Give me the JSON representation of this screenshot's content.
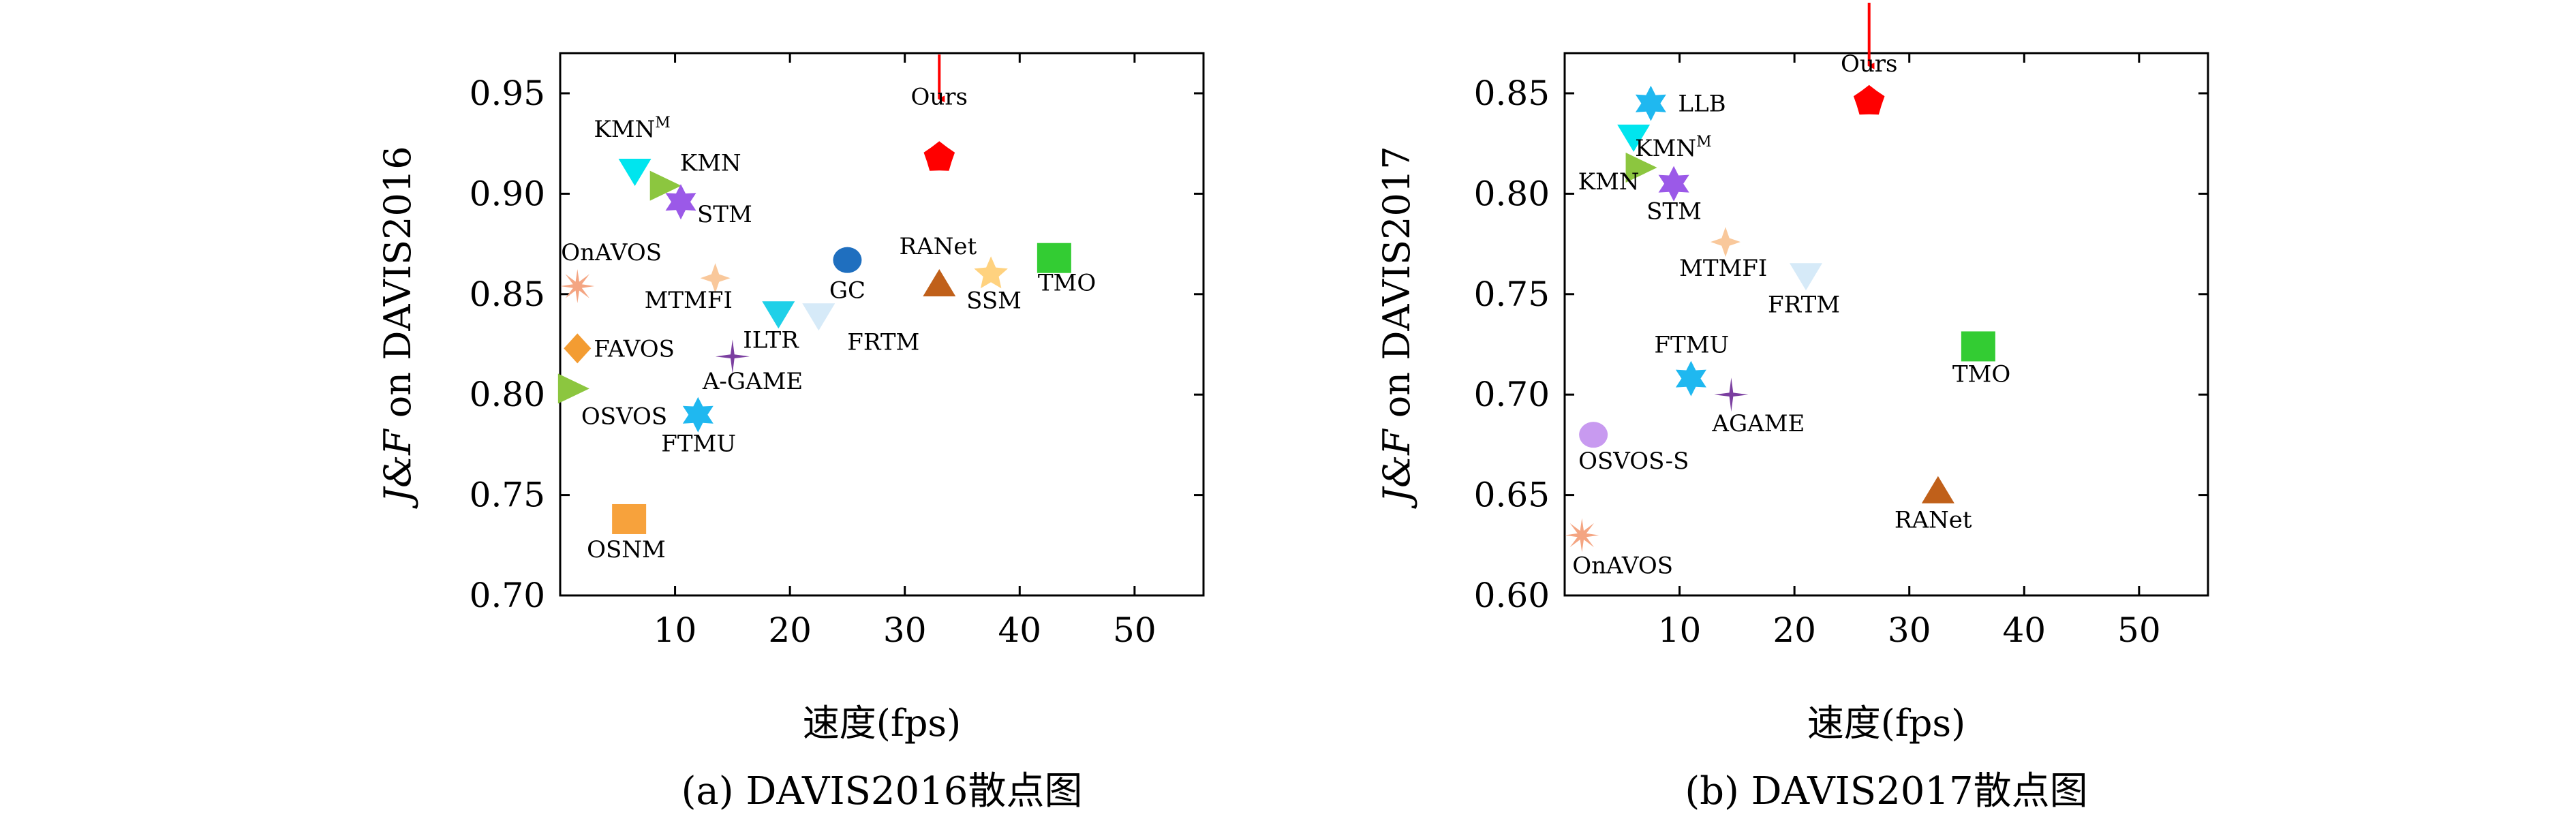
{
  "chart_data": [
    {
      "type": "scatter",
      "caption": "(a) DAVIS2016散点图",
      "xlabel": "速度(fps)",
      "ylabel_prefix": "J&F",
      "ylabel_suffix": " on DAVIS2016",
      "xlim": [
        0,
        56
      ],
      "ylim": [
        0.7,
        0.97
      ],
      "xticks": [
        "10",
        "20",
        "30",
        "40",
        "50"
      ],
      "xtick_values": [
        10,
        20,
        30,
        40,
        50
      ],
      "yticks": [
        "0.70",
        "0.75",
        "0.80",
        "0.85",
        "0.90",
        "0.95"
      ],
      "ytick_values": [
        0.7,
        0.75,
        0.8,
        0.85,
        0.9,
        0.95
      ],
      "arrow_target": "Ours",
      "points": [
        {
          "label": "KMN",
          "sup": "M",
          "x": 6.5,
          "y": 0.912,
          "shape": "tri-down",
          "color": "#00E5EE"
        },
        {
          "label": "KMN",
          "x": 9.0,
          "y": 0.904,
          "shape": "tri-right",
          "color": "#8CC63F"
        },
        {
          "label": "STM",
          "x": 10.5,
          "y": 0.896,
          "shape": "star6",
          "color": "#9B59E8"
        },
        {
          "label": "OnAVOS",
          "x": 1.5,
          "y": 0.854,
          "shape": "asterisk",
          "color": "#F4A582"
        },
        {
          "label": "MTMFI",
          "x": 13.5,
          "y": 0.858,
          "shape": "cross4",
          "color": "#F9C89B"
        },
        {
          "label": "GC",
          "x": 25.0,
          "y": 0.867,
          "shape": "circle",
          "color": "#1F6FBF"
        },
        {
          "label": "RANet",
          "x": 33.0,
          "y": 0.855,
          "shape": "tri-up",
          "color": "#C0601A"
        },
        {
          "label": "SSM",
          "x": 37.5,
          "y": 0.86,
          "shape": "star5",
          "color": "#FFD27F"
        },
        {
          "label": "TMO",
          "x": 43.0,
          "y": 0.868,
          "shape": "square",
          "color": "#33CC33"
        },
        {
          "label": "ILTR",
          "x": 19.0,
          "y": 0.841,
          "shape": "tri-down",
          "color": "#1FD0E8"
        },
        {
          "label": "FRTM",
          "x": 22.5,
          "y": 0.84,
          "shape": "tri-down",
          "color": "#D6EAF8"
        },
        {
          "label": "FAVOS",
          "x": 1.5,
          "y": 0.823,
          "shape": "diamond",
          "color": "#F39C32"
        },
        {
          "label": "A-GAME",
          "x": 15.0,
          "y": 0.819,
          "shape": "sparkle",
          "color": "#7B3FA0"
        },
        {
          "label": "OSVOS",
          "x": 1.0,
          "y": 0.803,
          "shape": "tri-right",
          "color": "#8CC63F"
        },
        {
          "label": "FTMU",
          "x": 12.0,
          "y": 0.79,
          "shape": "star6",
          "color": "#1FB8F0"
        },
        {
          "label": "OSNM",
          "x": 6.0,
          "y": 0.738,
          "shape": "square",
          "color": "#F7A23C"
        },
        {
          "label": "Ours",
          "x": 33.0,
          "y": 0.918,
          "shape": "pentagon",
          "color": "#FF0000"
        }
      ]
    },
    {
      "type": "scatter",
      "caption": "(b) DAVIS2017散点图",
      "xlabel": "速度(fps)",
      "ylabel_prefix": "J&F",
      "ylabel_suffix": " on DAVIS2017",
      "xlim": [
        0,
        56
      ],
      "ylim": [
        0.6,
        0.87
      ],
      "xticks": [
        "10",
        "20",
        "30",
        "40",
        "50"
      ],
      "xtick_values": [
        10,
        20,
        30,
        40,
        50
      ],
      "yticks": [
        "0.60",
        "0.65",
        "0.70",
        "0.75",
        "0.80",
        "0.85"
      ],
      "ytick_values": [
        0.6,
        0.65,
        0.7,
        0.75,
        0.8,
        0.85
      ],
      "arrow_target": "Ours",
      "points": [
        {
          "label": "LLB",
          "x": 7.5,
          "y": 0.845,
          "shape": "star6",
          "color": "#1FB8F0"
        },
        {
          "label": "KMN",
          "sup": "M",
          "x": 6.0,
          "y": 0.829,
          "shape": "tri-down",
          "color": "#00E5EE"
        },
        {
          "label": "KMN",
          "x": 6.5,
          "y": 0.813,
          "shape": "tri-right",
          "color": "#8CC63F"
        },
        {
          "label": "STM",
          "x": 9.5,
          "y": 0.805,
          "shape": "star6",
          "color": "#9B59E8"
        },
        {
          "label": "MTMFI",
          "x": 14.0,
          "y": 0.776,
          "shape": "cross4",
          "color": "#F9C89B"
        },
        {
          "label": "FRTM",
          "x": 21.0,
          "y": 0.76,
          "shape": "tri-down",
          "color": "#D6EAF8"
        },
        {
          "label": "FTMU",
          "x": 11.0,
          "y": 0.708,
          "shape": "star6",
          "color": "#1FB8F0"
        },
        {
          "label": "AGAME",
          "x": 14.5,
          "y": 0.7,
          "shape": "sparkle",
          "color": "#7B3FA0"
        },
        {
          "label": "TMO",
          "x": 36.0,
          "y": 0.724,
          "shape": "square",
          "color": "#33CC33"
        },
        {
          "label": "OSVOS-S",
          "x": 2.5,
          "y": 0.68,
          "shape": "circle",
          "color": "#C89AF0"
        },
        {
          "label": "RANet",
          "x": 32.5,
          "y": 0.652,
          "shape": "tri-up",
          "color": "#C0601A"
        },
        {
          "label": "OnAVOS",
          "x": 1.5,
          "y": 0.63,
          "shape": "asterisk",
          "color": "#F4A582"
        },
        {
          "label": "Ours",
          "x": 26.5,
          "y": 0.846,
          "shape": "pentagon",
          "color": "#FF0000"
        }
      ]
    }
  ]
}
